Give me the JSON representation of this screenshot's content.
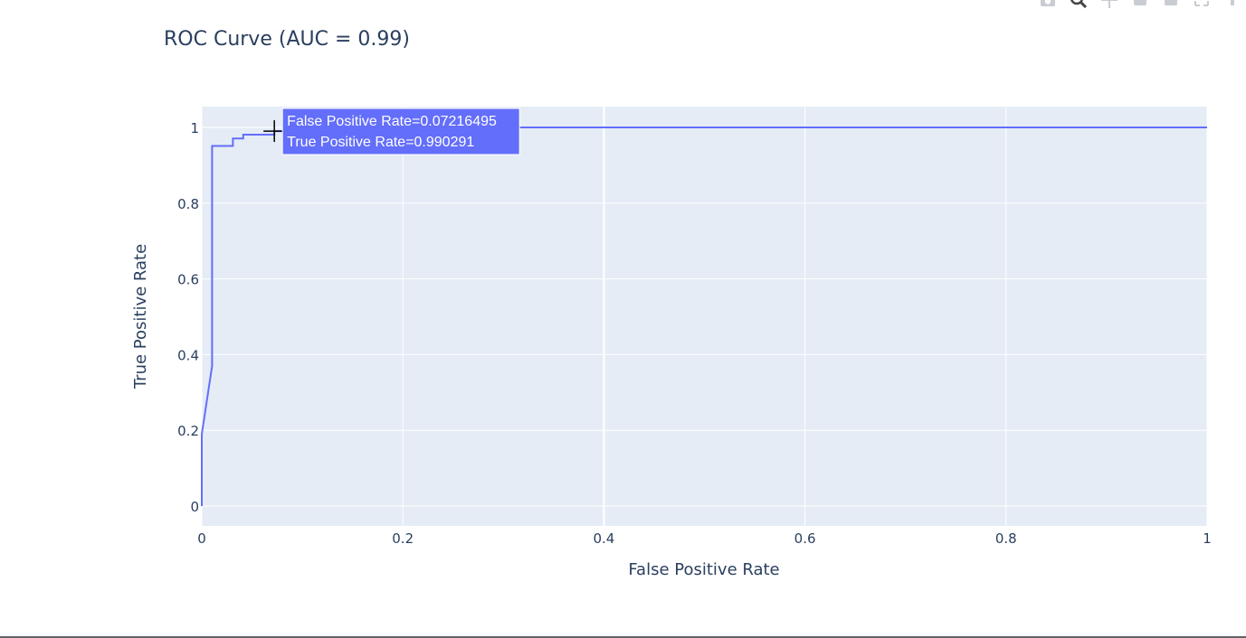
{
  "toolbar": {
    "icons": [
      "camera-icon",
      "zoom-icon",
      "pan-icon",
      "zoom-in-icon",
      "zoom-out-icon",
      "autoscale-icon",
      "reset-axes-icon"
    ]
  },
  "colors": {
    "plot_bg": "#e5ecf6",
    "grid": "#ffffff",
    "line": "#636efa",
    "text": "#2a3f5f",
    "tooltip_bg": "#636efa"
  },
  "chart_data": {
    "type": "line",
    "title": "ROC Curve (AUC = 0.99)",
    "xlabel": "False Positive Rate",
    "ylabel": "True Positive Rate",
    "xlim": [
      0,
      1
    ],
    "ylim": [
      0,
      1
    ],
    "xticks": [
      0,
      0.2,
      0.4,
      0.6,
      0.8,
      1
    ],
    "yticks": [
      0,
      0.2,
      0.4,
      0.6,
      0.8,
      1
    ],
    "xtick_labels": [
      "0",
      "0.2",
      "0.4",
      "0.6",
      "0.8",
      "1"
    ],
    "ytick_labels": [
      "0",
      "0.2",
      "0.4",
      "0.6",
      "0.8",
      "1"
    ],
    "grid": true,
    "series": [
      {
        "x": [
          0,
          0,
          0,
          0.0103,
          0.0103,
          0.031,
          0.031,
          0.0412,
          0.0412,
          0.0722,
          0.0722,
          0.0928,
          0.0928,
          1
        ],
        "y": [
          0,
          0.19,
          0.19,
          0.37,
          0.951,
          0.951,
          0.971,
          0.971,
          0.981,
          0.981,
          0.990291,
          0.990291,
          1,
          1
        ]
      }
    ],
    "hover": {
      "x_label": "False Positive Rate=0.07216495",
      "y_label": "True Positive Rate=0.990291",
      "x": 0.07216495,
      "y": 0.990291
    }
  }
}
